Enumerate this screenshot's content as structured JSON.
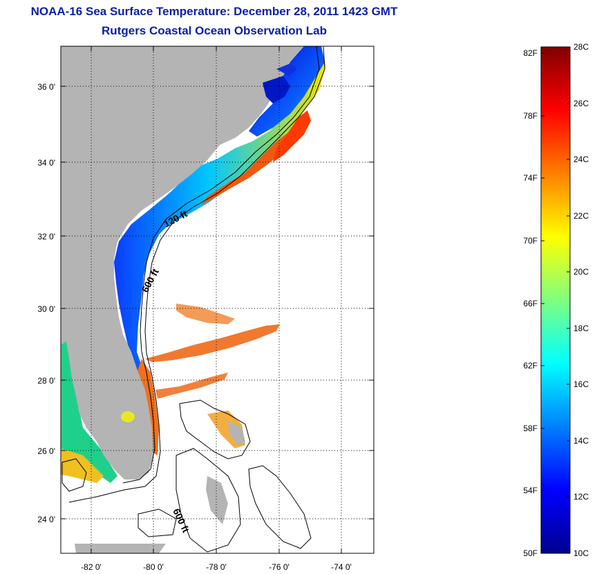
{
  "title": {
    "line1": "NOAA-16 Sea Surface Temperature:  December 28, 2011 1423 GMT",
    "line2": "Rutgers Coastal Ocean Observation Lab"
  },
  "map": {
    "lat_ticks": [
      "36 0'",
      "34 0'",
      "32 0'",
      "30 0'",
      "28 0'",
      "26 0'",
      "24 0'"
    ],
    "lon_ticks": [
      "-82 0'",
      "-80 0'",
      "-78 0'",
      "-76 0'",
      "-74 0'"
    ],
    "contour_labels": [
      "120 ft",
      "600 ft",
      "600 ft"
    ],
    "land_color": "#b4b4b4",
    "grid": "dotted"
  },
  "colorbar": {
    "fahrenheit_labels": [
      "82F",
      "78F",
      "74F",
      "70F",
      "66F",
      "62F",
      "58F",
      "54F",
      "50F"
    ],
    "celsius_labels": [
      "28C",
      "26C",
      "24C",
      "22C",
      "20C",
      "18C",
      "16C",
      "14C",
      "12C",
      "10C"
    ],
    "colormap": "jet",
    "range_c": [
      10,
      28
    ]
  }
}
